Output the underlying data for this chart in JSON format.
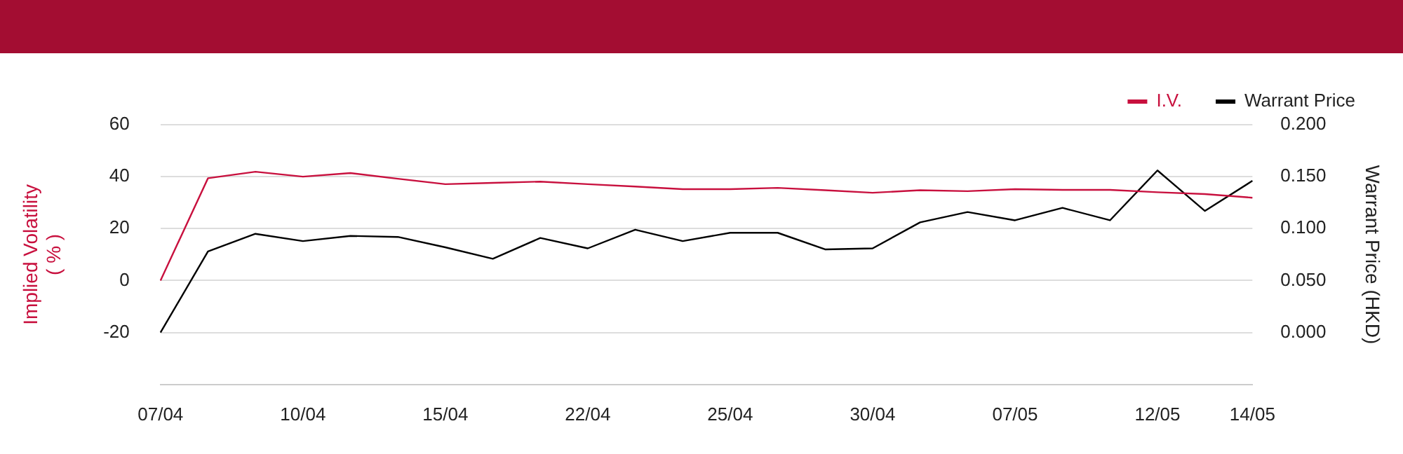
{
  "chart_data": {
    "type": "line",
    "categories": [
      "07/04",
      null,
      null,
      "10/04",
      null,
      null,
      "15/04",
      null,
      null,
      "22/04",
      null,
      null,
      "25/04",
      null,
      null,
      "30/04",
      null,
      null,
      "07/05",
      null,
      null,
      "12/05",
      null,
      "14/05"
    ],
    "series": [
      {
        "name": "I.V.",
        "color": "#c8103e",
        "axis": "y",
        "values": [
          0,
          39.4,
          41.9,
          40,
          41.4,
          39.2,
          37.1,
          37.6,
          38.1,
          37.1,
          36.2,
          35.2,
          35.2,
          35.7,
          34.8,
          33.8,
          34.8,
          34.4,
          35.2,
          34.9,
          34.9,
          34.0,
          33.3,
          31.9
        ]
      },
      {
        "name": "Warrant Price",
        "color": "#000000",
        "axis": "y2",
        "values": [
          0,
          0.078,
          0.095,
          0.088,
          0.093,
          0.092,
          0.082,
          0.071,
          0.091,
          0.081,
          0.099,
          0.088,
          0.096,
          0.096,
          0.08,
          0.081,
          0.106,
          0.116,
          0.108,
          0.12,
          0.108,
          0.156,
          0.117,
          0.146
        ]
      }
    ],
    "ylabel": "Implied Volatility\n( % )",
    "y2label": "Warrant Price (HKD)",
    "ylim": [
      -40,
      60
    ],
    "yticks": [
      -20,
      0,
      20,
      40,
      60
    ],
    "y2lim": [
      -0.05,
      0.2
    ],
    "y2ticks": [
      {
        "value": 0,
        "label": "0.000"
      },
      {
        "value": 0.05,
        "label": "0.050"
      },
      {
        "value": 0.1,
        "label": "0.100"
      },
      {
        "value": 0.15,
        "label": "0.150"
      },
      {
        "value": 0.2,
        "label": "0.200"
      }
    ],
    "grid": "y",
    "legend": "top right",
    "marker": "none",
    "line_style": "solid"
  }
}
